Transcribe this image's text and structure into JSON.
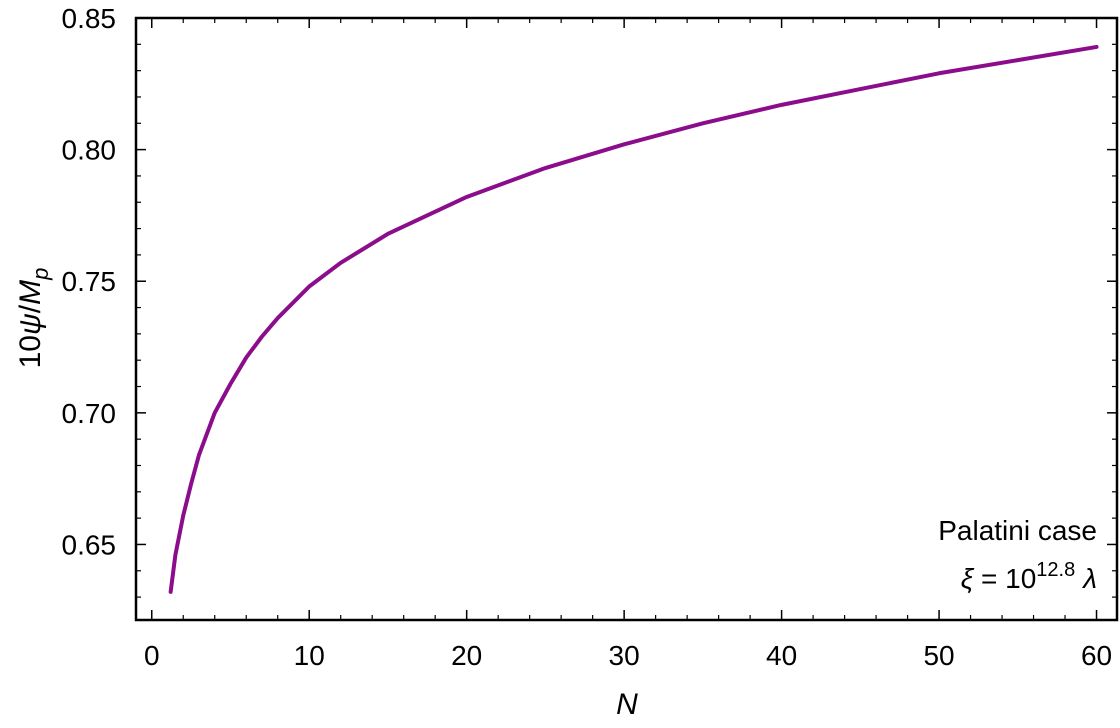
{
  "chart_data": {
    "type": "line",
    "xlim": [
      -1,
      61.3
    ],
    "ylim": [
      0.6213,
      0.85
    ],
    "x_ticks": [
      0,
      10,
      20,
      30,
      40,
      50,
      60
    ],
    "x_tick_labels": [
      "0",
      "10",
      "20",
      "30",
      "40",
      "50",
      "60"
    ],
    "y_ticks": [
      0.65,
      0.7,
      0.75,
      0.8,
      0.85
    ],
    "y_tick_labels": [
      "0.65",
      "0.70",
      "0.75",
      "0.80",
      "0.85"
    ],
    "xlabel": "N",
    "ylabel": {
      "prefix": "10",
      "psi": "ψ",
      "slash": "/",
      "M": "M",
      "sub": "p"
    },
    "annotation": {
      "line1": "Palatini case",
      "xi": "ξ",
      "equals": " = 10",
      "exponent": "12.8",
      "lambda": "λ"
    },
    "grid": false,
    "series": [
      {
        "color": "#8B0D8B",
        "x": [
          1.2,
          1.5,
          2,
          2.5,
          3,
          4,
          5,
          6,
          7,
          8,
          10,
          12,
          15,
          20,
          25,
          30,
          35,
          40,
          45,
          50,
          55,
          60
        ],
        "y": [
          0.632,
          0.646,
          0.661,
          0.673,
          0.684,
          0.7,
          0.711,
          0.721,
          0.729,
          0.736,
          0.748,
          0.757,
          0.768,
          0.782,
          0.793,
          0.802,
          0.81,
          0.817,
          0.823,
          0.829,
          0.834,
          0.839
        ]
      }
    ]
  }
}
